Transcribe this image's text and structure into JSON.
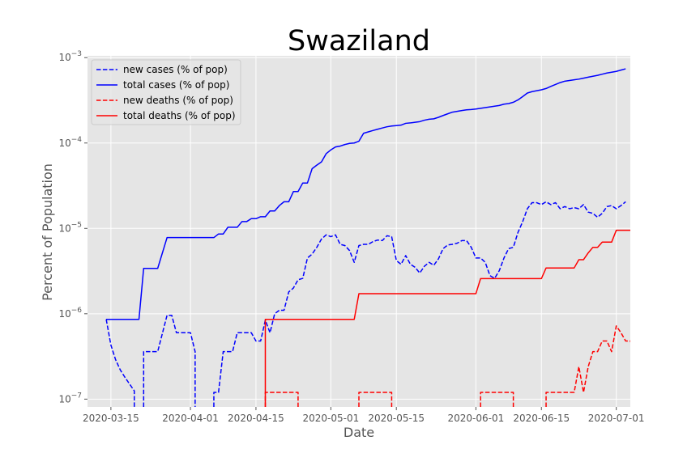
{
  "chart_data": {
    "type": "line",
    "title": "Swaziland",
    "xlabel": "Date",
    "ylabel": "Percent of Population",
    "yscale": "log",
    "ylim": [
      8.1e-08,
      0.00105
    ],
    "xlim": [
      "2020-03-10",
      "2020-07-04"
    ],
    "grid": true,
    "legend_position": "top-left",
    "x_ticks": [
      "2020-03-15",
      "2020-04-01",
      "2020-04-15",
      "2020-05-01",
      "2020-05-15",
      "2020-06-01",
      "2020-06-15",
      "2020-07-01"
    ],
    "y_ticks": [
      {
        "value": 1e-07,
        "base": "10",
        "exp": "−7"
      },
      {
        "value": 1e-06,
        "base": "10",
        "exp": "−6"
      },
      {
        "value": 1e-05,
        "base": "10",
        "exp": "−5"
      },
      {
        "value": 0.0001,
        "base": "10",
        "exp": "−4"
      },
      {
        "value": 0.001,
        "base": "10",
        "exp": "−3"
      }
    ],
    "series": [
      {
        "name": "new cases (% of pop)",
        "color": "#0000ff",
        "dash": "dashed",
        "points": [
          [
            "2020-03-14",
            8.6e-07
          ],
          [
            "2020-03-15",
            4.3e-07
          ],
          [
            "2020-03-16",
            2.9e-07
          ],
          [
            "2020-03-17",
            2.2e-07
          ],
          [
            "2020-03-18",
            1.8e-07
          ],
          [
            "2020-03-19",
            1.5e-07
          ],
          [
            "2020-03-20",
            1.25e-07
          ],
          [
            "2020-03-20",
            7e-08
          ],
          [
            "2020-03-21",
            null
          ],
          [
            "2020-03-22",
            7e-08
          ],
          [
            "2020-03-22",
            3.6e-07
          ],
          [
            "2020-03-25",
            3.6e-07
          ],
          [
            "2020-03-27",
            9.6e-07
          ],
          [
            "2020-03-28",
            9.6e-07
          ],
          [
            "2020-03-29",
            6e-07
          ],
          [
            "2020-04-01",
            6e-07
          ],
          [
            "2020-04-02",
            3.6e-07
          ],
          [
            "2020-04-02",
            7e-08
          ],
          [
            "2020-04-03",
            null
          ],
          [
            "2020-04-06",
            7e-08
          ],
          [
            "2020-04-06",
            1.2e-07
          ],
          [
            "2020-04-07",
            1.2e-07
          ],
          [
            "2020-04-08",
            3.6e-07
          ],
          [
            "2020-04-10",
            3.6e-07
          ],
          [
            "2020-04-11",
            6e-07
          ],
          [
            "2020-04-14",
            6e-07
          ],
          [
            "2020-04-15",
            4.8e-07
          ],
          [
            "2020-04-16",
            4.8e-07
          ],
          [
            "2020-04-17",
            8.4e-07
          ],
          [
            "2020-04-18",
            6e-07
          ],
          [
            "2020-04-19",
            1e-06
          ],
          [
            "2020-04-20",
            1.1e-06
          ],
          [
            "2020-04-21",
            1.1e-06
          ],
          [
            "2020-04-22",
            1.8e-06
          ],
          [
            "2020-04-23",
            2e-06
          ],
          [
            "2020-04-24",
            2.5e-06
          ],
          [
            "2020-04-25",
            2.6e-06
          ],
          [
            "2020-04-26",
            4.5e-06
          ],
          [
            "2020-04-27",
            5e-06
          ],
          [
            "2020-04-28",
            6e-06
          ],
          [
            "2020-04-29",
            7.5e-06
          ],
          [
            "2020-04-30",
            8.4e-06
          ],
          [
            "2020-05-01",
            8e-06
          ],
          [
            "2020-05-02",
            8.4e-06
          ],
          [
            "2020-05-03",
            6.5e-06
          ],
          [
            "2020-05-04",
            6.3e-06
          ],
          [
            "2020-05-05",
            5.5e-06
          ],
          [
            "2020-05-06",
            4e-06
          ],
          [
            "2020-05-07",
            6.3e-06
          ],
          [
            "2020-05-08",
            6.5e-06
          ],
          [
            "2020-05-09",
            6.5e-06
          ],
          [
            "2020-05-10",
            7e-06
          ],
          [
            "2020-05-11",
            7.3e-06
          ],
          [
            "2020-05-12",
            7.2e-06
          ],
          [
            "2020-05-13",
            8.2e-06
          ],
          [
            "2020-05-14",
            8e-06
          ],
          [
            "2020-05-15",
            4.2e-06
          ],
          [
            "2020-05-16",
            3.8e-06
          ],
          [
            "2020-05-17",
            4.8e-06
          ],
          [
            "2020-05-18",
            3.8e-06
          ],
          [
            "2020-05-19",
            3.5e-06
          ],
          [
            "2020-05-20",
            3e-06
          ],
          [
            "2020-05-21",
            3.6e-06
          ],
          [
            "2020-05-22",
            4e-06
          ],
          [
            "2020-05-23",
            3.7e-06
          ],
          [
            "2020-05-24",
            4.4e-06
          ],
          [
            "2020-05-25",
            5.8e-06
          ],
          [
            "2020-05-26",
            6.4e-06
          ],
          [
            "2020-05-27",
            6.5e-06
          ],
          [
            "2020-05-28",
            6.7e-06
          ],
          [
            "2020-05-29",
            7.2e-06
          ],
          [
            "2020-05-30",
            7.2e-06
          ],
          [
            "2020-05-31",
            6e-06
          ],
          [
            "2020-06-01",
            4.5e-06
          ],
          [
            "2020-06-02",
            4.5e-06
          ],
          [
            "2020-06-03",
            4e-06
          ],
          [
            "2020-06-04",
            2.8e-06
          ],
          [
            "2020-06-05",
            2.6e-06
          ],
          [
            "2020-06-06",
            3.2e-06
          ],
          [
            "2020-06-07",
            4.5e-06
          ],
          [
            "2020-06-08",
            5.8e-06
          ],
          [
            "2020-06-09",
            6e-06
          ],
          [
            "2020-06-10",
            9e-06
          ],
          [
            "2020-06-11",
            1.2e-05
          ],
          [
            "2020-06-12",
            1.7e-05
          ],
          [
            "2020-06-13",
            2e-05
          ],
          [
            "2020-06-14",
            2e-05
          ],
          [
            "2020-06-15",
            1.9e-05
          ],
          [
            "2020-06-16",
            2.05e-05
          ],
          [
            "2020-06-17",
            1.9e-05
          ],
          [
            "2020-06-18",
            2e-05
          ],
          [
            "2020-06-19",
            1.7e-05
          ],
          [
            "2020-06-20",
            1.8e-05
          ],
          [
            "2020-06-21",
            1.7e-05
          ],
          [
            "2020-06-22",
            1.75e-05
          ],
          [
            "2020-06-23",
            1.7e-05
          ],
          [
            "2020-06-24",
            1.9e-05
          ],
          [
            "2020-06-25",
            1.55e-05
          ],
          [
            "2020-06-26",
            1.5e-05
          ],
          [
            "2020-06-27",
            1.35e-05
          ],
          [
            "2020-06-28",
            1.5e-05
          ],
          [
            "2020-06-29",
            1.8e-05
          ],
          [
            "2020-06-30",
            1.85e-05
          ],
          [
            "2020-07-01",
            1.7e-05
          ],
          [
            "2020-07-02",
            1.85e-05
          ],
          [
            "2020-07-03",
            2.05e-05
          ]
        ]
      },
      {
        "name": "total cases (% of pop)",
        "color": "#0000ff",
        "dash": "solid",
        "points": [
          [
            "2020-03-14",
            8.6e-07
          ],
          [
            "2020-03-21",
            8.6e-07
          ],
          [
            "2020-03-22",
            3.4e-06
          ],
          [
            "2020-03-25",
            3.4e-06
          ],
          [
            "2020-03-27",
            7.8e-06
          ],
          [
            "2020-04-06",
            7.8e-06
          ],
          [
            "2020-04-07",
            8.6e-06
          ],
          [
            "2020-04-08",
            8.6e-06
          ],
          [
            "2020-04-09",
            1.03e-05
          ],
          [
            "2020-04-11",
            1.03e-05
          ],
          [
            "2020-04-12",
            1.2e-05
          ],
          [
            "2020-04-13",
            1.2e-05
          ],
          [
            "2020-04-14",
            1.3e-05
          ],
          [
            "2020-04-15",
            1.3e-05
          ],
          [
            "2020-04-16",
            1.37e-05
          ],
          [
            "2020-04-17",
            1.37e-05
          ],
          [
            "2020-04-18",
            1.6e-05
          ],
          [
            "2020-04-19",
            1.6e-05
          ],
          [
            "2020-04-20",
            1.85e-05
          ],
          [
            "2020-04-21",
            2.05e-05
          ],
          [
            "2020-04-22",
            2.05e-05
          ],
          [
            "2020-04-23",
            2.7e-05
          ],
          [
            "2020-04-24",
            2.7e-05
          ],
          [
            "2020-04-25",
            3.4e-05
          ],
          [
            "2020-04-26",
            3.4e-05
          ],
          [
            "2020-04-27",
            5e-05
          ],
          [
            "2020-04-28",
            5.5e-05
          ],
          [
            "2020-04-29",
            6e-05
          ],
          [
            "2020-04-30",
            7.5e-05
          ],
          [
            "2020-05-01",
            8.3e-05
          ],
          [
            "2020-05-02",
            9e-05
          ],
          [
            "2020-05-03",
            9.2e-05
          ],
          [
            "2020-05-04",
            9.6e-05
          ],
          [
            "2020-05-05",
            9.9e-05
          ],
          [
            "2020-05-06",
            0.0001
          ],
          [
            "2020-05-07",
            0.000105
          ],
          [
            "2020-05-08",
            0.00013
          ],
          [
            "2020-05-09",
            0.000135
          ],
          [
            "2020-05-10",
            0.00014
          ],
          [
            "2020-05-11",
            0.000145
          ],
          [
            "2020-05-12",
            0.00015
          ],
          [
            "2020-05-13",
            0.000155
          ],
          [
            "2020-05-14",
            0.000158
          ],
          [
            "2020-05-15",
            0.00016
          ],
          [
            "2020-05-16",
            0.000162
          ],
          [
            "2020-05-17",
            0.00017
          ],
          [
            "2020-05-18",
            0.000172
          ],
          [
            "2020-05-19",
            0.000175
          ],
          [
            "2020-05-20",
            0.000178
          ],
          [
            "2020-05-21",
            0.000185
          ],
          [
            "2020-05-22",
            0.00019
          ],
          [
            "2020-05-23",
            0.000192
          ],
          [
            "2020-05-24",
            0.0002
          ],
          [
            "2020-05-25",
            0.00021
          ],
          [
            "2020-05-26",
            0.00022
          ],
          [
            "2020-05-27",
            0.00023
          ],
          [
            "2020-05-28",
            0.000235
          ],
          [
            "2020-05-29",
            0.00024
          ],
          [
            "2020-05-30",
            0.000245
          ],
          [
            "2020-05-31",
            0.000247
          ],
          [
            "2020-06-01",
            0.00025
          ],
          [
            "2020-06-02",
            0.000255
          ],
          [
            "2020-06-03",
            0.00026
          ],
          [
            "2020-06-04",
            0.000265
          ],
          [
            "2020-06-05",
            0.00027
          ],
          [
            "2020-06-06",
            0.000275
          ],
          [
            "2020-06-07",
            0.000285
          ],
          [
            "2020-06-08",
            0.00029
          ],
          [
            "2020-06-09",
            0.0003
          ],
          [
            "2020-06-10",
            0.00032
          ],
          [
            "2020-06-11",
            0.00035
          ],
          [
            "2020-06-12",
            0.000385
          ],
          [
            "2020-06-13",
            0.0004
          ],
          [
            "2020-06-14",
            0.00041
          ],
          [
            "2020-06-15",
            0.00042
          ],
          [
            "2020-06-16",
            0.000435
          ],
          [
            "2020-06-17",
            0.00046
          ],
          [
            "2020-06-18",
            0.000485
          ],
          [
            "2020-06-19",
            0.00051
          ],
          [
            "2020-06-20",
            0.00053
          ],
          [
            "2020-06-21",
            0.00054
          ],
          [
            "2020-06-22",
            0.00055
          ],
          [
            "2020-06-23",
            0.00056
          ],
          [
            "2020-06-24",
            0.000575
          ],
          [
            "2020-06-25",
            0.00059
          ],
          [
            "2020-06-26",
            0.000605
          ],
          [
            "2020-06-27",
            0.00062
          ],
          [
            "2020-06-28",
            0.00064
          ],
          [
            "2020-06-29",
            0.00066
          ],
          [
            "2020-06-30",
            0.000675
          ],
          [
            "2020-07-01",
            0.00069
          ],
          [
            "2020-07-02",
            0.000715
          ],
          [
            "2020-07-03",
            0.00074
          ]
        ]
      },
      {
        "name": "new deaths (% of pop)",
        "color": "#ff0000",
        "dash": "dashed",
        "points": [
          [
            "2020-04-17",
            7e-08
          ],
          [
            "2020-04-17",
            1.2e-07
          ],
          [
            "2020-04-24",
            1.2e-07
          ],
          [
            "2020-04-24",
            7e-08
          ],
          [
            "2020-04-25",
            null
          ],
          [
            "2020-05-07",
            7e-08
          ],
          [
            "2020-05-07",
            1.2e-07
          ],
          [
            "2020-05-14",
            1.2e-07
          ],
          [
            "2020-05-14",
            7e-08
          ],
          [
            "2020-05-15",
            null
          ],
          [
            "2020-06-02",
            7e-08
          ],
          [
            "2020-06-02",
            1.2e-07
          ],
          [
            "2020-06-09",
            1.2e-07
          ],
          [
            "2020-06-09",
            7e-08
          ],
          [
            "2020-06-10",
            null
          ],
          [
            "2020-06-16",
            7e-08
          ],
          [
            "2020-06-16",
            1.2e-07
          ],
          [
            "2020-06-22",
            1.2e-07
          ],
          [
            "2020-06-23",
            2.4e-07
          ],
          [
            "2020-06-24",
            1.2e-07
          ],
          [
            "2020-06-25",
            2.4e-07
          ],
          [
            "2020-06-26",
            3.6e-07
          ],
          [
            "2020-06-27",
            3.6e-07
          ],
          [
            "2020-06-28",
            4.8e-07
          ],
          [
            "2020-06-29",
            4.8e-07
          ],
          [
            "2020-06-30",
            3.6e-07
          ],
          [
            "2020-07-01",
            7.2e-07
          ],
          [
            "2020-07-02",
            6e-07
          ],
          [
            "2020-07-03",
            4.8e-07
          ],
          [
            "2020-07-04",
            4.8e-07
          ],
          [
            "2020-07-05",
            3.6e-07
          ]
        ]
      },
      {
        "name": "total deaths (% of pop)",
        "color": "#ff0000",
        "dash": "solid",
        "points": [
          [
            "2020-04-17",
            7e-08
          ],
          [
            "2020-04-17",
            8.6e-07
          ],
          [
            "2020-05-06",
            8.6e-07
          ],
          [
            "2020-05-07",
            1.72e-06
          ],
          [
            "2020-06-01",
            1.72e-06
          ],
          [
            "2020-06-02",
            2.58e-06
          ],
          [
            "2020-06-15",
            2.58e-06
          ],
          [
            "2020-06-16",
            3.44e-06
          ],
          [
            "2020-06-22",
            3.44e-06
          ],
          [
            "2020-06-23",
            4.3e-06
          ],
          [
            "2020-06-24",
            4.3e-06
          ],
          [
            "2020-06-25",
            5.16e-06
          ],
          [
            "2020-06-26",
            6e-06
          ],
          [
            "2020-06-27",
            6e-06
          ],
          [
            "2020-06-28",
            6.9e-06
          ],
          [
            "2020-06-30",
            6.9e-06
          ],
          [
            "2020-07-01",
            9.5e-06
          ],
          [
            "2020-07-05",
            9.5e-06
          ]
        ]
      }
    ]
  }
}
